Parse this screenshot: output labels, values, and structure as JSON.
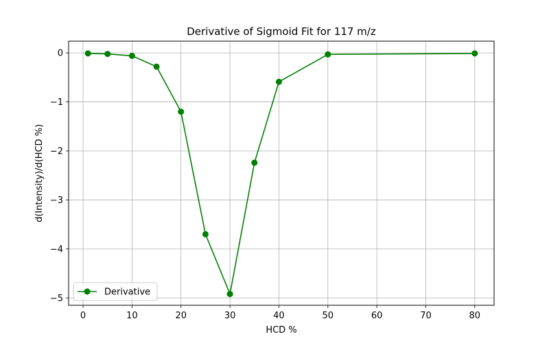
{
  "chart_data": {
    "type": "line",
    "title": "Derivative of Sigmoid Fit for 117 m/z",
    "xlabel": "HCD %",
    "ylabel": "d(Intensity)/d(HCD %)",
    "xlim": [
      -2.95,
      83.95
    ],
    "ylim": [
      -5.15,
      0.24
    ],
    "xticks": [
      0,
      10,
      20,
      30,
      40,
      50,
      60,
      70,
      80
    ],
    "xtick_labels": [
      "0",
      "10",
      "20",
      "30",
      "40",
      "50",
      "60",
      "70",
      "80"
    ],
    "yticks": [
      0,
      -1,
      -2,
      -3,
      -4,
      -5
    ],
    "ytick_labels": [
      "0",
      "−1",
      "−2",
      "−3",
      "−4",
      "−5"
    ],
    "grid": true,
    "legend_position": "lower-left",
    "series": [
      {
        "name": "Derivative",
        "color": "#008000",
        "marker": "circle",
        "x": [
          1,
          5,
          10,
          15,
          20,
          25,
          30,
          35,
          40,
          50,
          80
        ],
        "y": [
          -0.01,
          -0.02,
          -0.06,
          -0.28,
          -1.2,
          -3.7,
          -4.92,
          -2.24,
          -0.59,
          -0.03,
          -0.01
        ]
      }
    ]
  }
}
